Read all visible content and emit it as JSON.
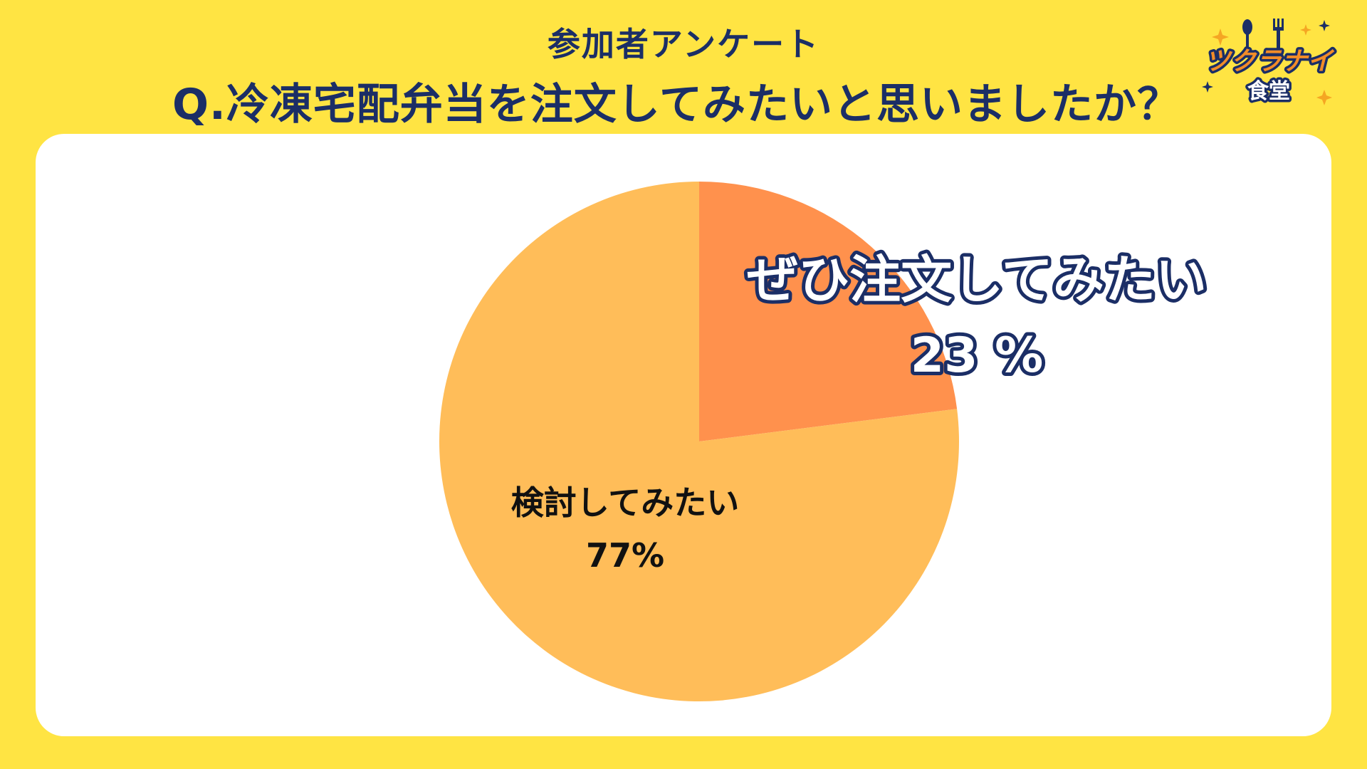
{
  "header": {
    "subtitle": "参加者アンケート",
    "title": "Q.冷凍宅配弁当を注文してみたいと思いましたか？"
  },
  "logo": {
    "line1": "ツクラナイ",
    "line2": "食堂",
    "icon": "fork-spoon-icon"
  },
  "chart_data": {
    "type": "pie",
    "title": "Q.冷凍宅配弁当を注文してみたいと思いましたか？",
    "slices": [
      {
        "label": "ぜひ注文してみたい",
        "value": 23,
        "value_label": "23 %",
        "color": "#ff914d"
      },
      {
        "label": "検討してみたい",
        "value": 77,
        "value_label": "77%",
        "color": "#ffbd59"
      }
    ],
    "legend": "none"
  }
}
